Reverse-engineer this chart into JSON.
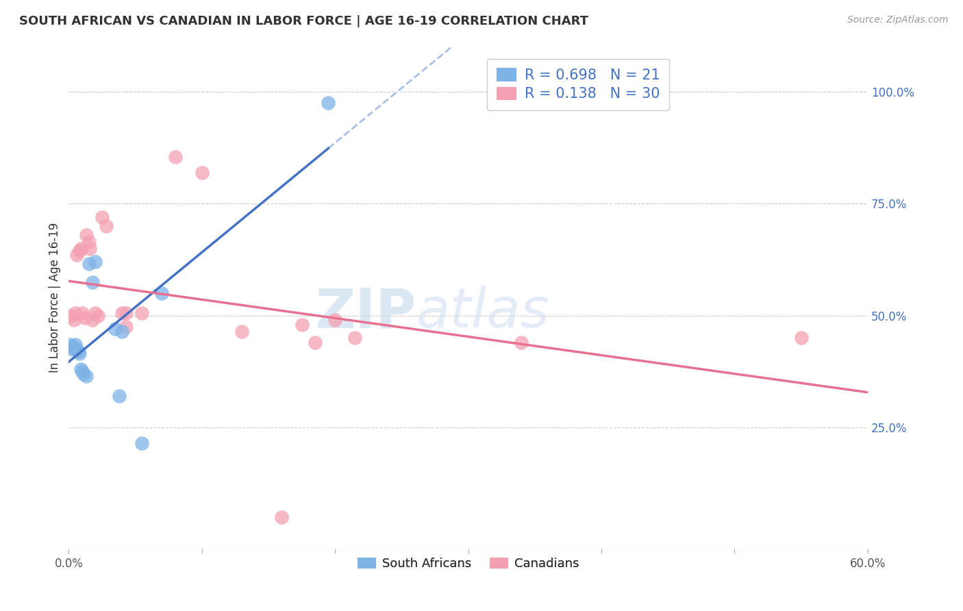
{
  "title": "SOUTH AFRICAN VS CANADIAN IN LABOR FORCE | AGE 16-19 CORRELATION CHART",
  "source": "Source: ZipAtlas.com",
  "ylabel": "In Labor Force | Age 16-19",
  "xlim": [
    0.0,
    0.6
  ],
  "ylim": [
    -0.02,
    1.1
  ],
  "xticks": [
    0.0,
    0.1,
    0.2,
    0.3,
    0.4,
    0.5,
    0.6
  ],
  "xticklabels": [
    "0.0%",
    "",
    "",
    "",
    "",
    "",
    "60.0%"
  ],
  "yticks_right": [
    0.25,
    0.5,
    0.75,
    1.0
  ],
  "ytick_labels_right": [
    "25.0%",
    "50.0%",
    "75.0%",
    "100.0%"
  ],
  "south_african_x": [
    0.001,
    0.002,
    0.003,
    0.004,
    0.005,
    0.006,
    0.007,
    0.008,
    0.009,
    0.01,
    0.011,
    0.013,
    0.015,
    0.018,
    0.02,
    0.035,
    0.038,
    0.04,
    0.055,
    0.07,
    0.195
  ],
  "south_african_y": [
    0.435,
    0.43,
    0.425,
    0.43,
    0.435,
    0.425,
    0.42,
    0.415,
    0.38,
    0.375,
    0.37,
    0.365,
    0.615,
    0.575,
    0.62,
    0.47,
    0.32,
    0.465,
    0.215,
    0.55,
    0.975
  ],
  "canadian_x": [
    0.002,
    0.004,
    0.005,
    0.006,
    0.008,
    0.009,
    0.01,
    0.012,
    0.013,
    0.015,
    0.016,
    0.018,
    0.02,
    0.022,
    0.025,
    0.028,
    0.04,
    0.043,
    0.043,
    0.055,
    0.1,
    0.13,
    0.16,
    0.175,
    0.185,
    0.2,
    0.215,
    0.34,
    0.55,
    0.08
  ],
  "canadian_y": [
    0.5,
    0.49,
    0.505,
    0.635,
    0.645,
    0.65,
    0.505,
    0.495,
    0.68,
    0.665,
    0.65,
    0.49,
    0.505,
    0.5,
    0.72,
    0.7,
    0.505,
    0.505,
    0.475,
    0.505,
    0.82,
    0.465,
    0.05,
    0.48,
    0.44,
    0.49,
    0.45,
    0.44,
    0.45,
    0.855
  ],
  "sa_R": 0.698,
  "sa_N": 21,
  "ca_R": 0.138,
  "ca_N": 30,
  "sa_color": "#7EB3E8",
  "ca_color": "#F4A0B0",
  "sa_line_color": "#4472C4",
  "ca_line_color": "#E87090",
  "watermark_zip": "ZIP",
  "watermark_atlas": "atlas",
  "legend_label_sa": "South Africans",
  "legend_label_ca": "Canadians",
  "background_color": "#FFFFFF",
  "grid_color": "#CCCCCC"
}
